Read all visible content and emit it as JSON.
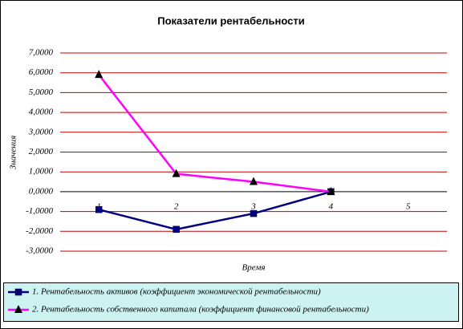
{
  "chart_data": {
    "type": "line",
    "title": "Показатели рентабельности",
    "x_label": "Время",
    "y_label": "Значения",
    "categories": [
      "1",
      "2",
      "3",
      "4",
      "5"
    ],
    "series": [
      {
        "name": "1. Рентабельность активов (коэффициент экономической рентабельности)",
        "color": "#000080",
        "marker": "square",
        "values": [
          -0.9,
          -1.9,
          -1.1,
          0.0,
          null
        ]
      },
      {
        "name": "2. Рентабельность собственного капитала (коэффициент финансовой рентабельности)",
        "color": "#ff00ff",
        "marker": "triangle",
        "values": [
          5.9,
          0.9,
          0.5,
          0.0,
          null
        ]
      }
    ],
    "ylim": [
      -3,
      7
    ],
    "yticks": [
      {
        "value": -3,
        "label": "-3,0000"
      },
      {
        "value": -2,
        "label": "-2,0000"
      },
      {
        "value": -1,
        "label": "-1,0000"
      },
      {
        "value": 0,
        "label": "0,0000"
      },
      {
        "value": 1,
        "label": "1,0000"
      },
      {
        "value": 2,
        "label": "2,0000"
      },
      {
        "value": 3,
        "label": "3,0000"
      },
      {
        "value": 4,
        "label": "4,0000"
      },
      {
        "value": 5,
        "label": "5,0000"
      },
      {
        "value": 6,
        "label": "6,0000"
      },
      {
        "value": 7,
        "label": "7,0000"
      }
    ],
    "grid": true,
    "grid_color": "#c00000",
    "legend_position": "bottom"
  }
}
